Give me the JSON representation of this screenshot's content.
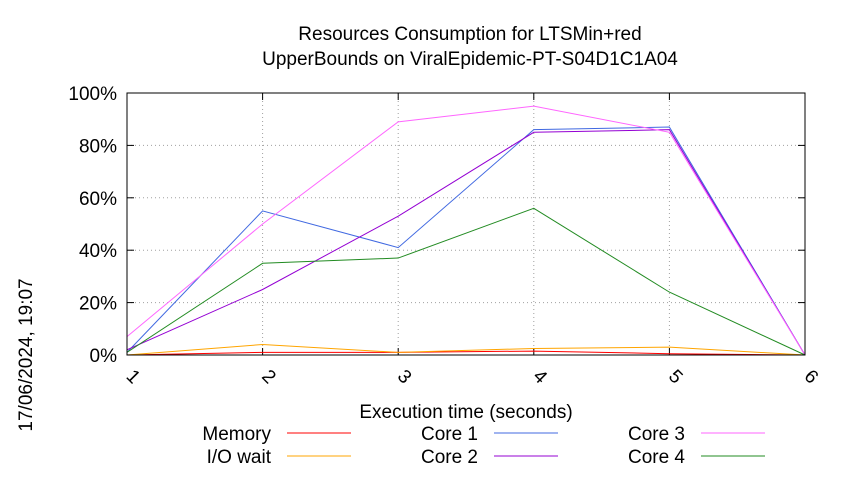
{
  "chart_data": {
    "type": "line",
    "title": [
      "Resources Consumption for LTSMin+red",
      "UpperBounds on ViralEpidemic-PT-S04D1C1A04"
    ],
    "xlabel": "Execution time (seconds)",
    "ylabel": "",
    "side_label": "17/06/2024, 19:07",
    "x": [
      1,
      2,
      3,
      4,
      5,
      6
    ],
    "xlim": [
      1,
      6
    ],
    "ylim": [
      0,
      100
    ],
    "xticks": [
      "1",
      "2",
      "3",
      "4",
      "5",
      "6"
    ],
    "yticks": [
      "0%",
      "20%",
      "40%",
      "60%",
      "80%",
      "100%"
    ],
    "grid": true,
    "legend_position": "bottom",
    "series": [
      {
        "name": "Memory",
        "color": "#ff0000",
        "values": [
          0,
          1,
          1,
          1.5,
          0.5,
          0
        ]
      },
      {
        "name": "I/O wait",
        "color": "#ffa500",
        "values": [
          0,
          4,
          1,
          2.5,
          3,
          0
        ]
      },
      {
        "name": "Core 1",
        "color": "#4169e1",
        "values": [
          1,
          55,
          41,
          86,
          87,
          0
        ]
      },
      {
        "name": "Core 2",
        "color": "#9400d3",
        "values": [
          2,
          25,
          53,
          85,
          86,
          0
        ]
      },
      {
        "name": "Core 3",
        "color": "#ff66ff",
        "values": [
          7,
          50,
          89,
          95,
          85,
          0
        ]
      },
      {
        "name": "Core 4",
        "color": "#228b22",
        "values": [
          1,
          35,
          37,
          56,
          24,
          0
        ]
      }
    ]
  }
}
